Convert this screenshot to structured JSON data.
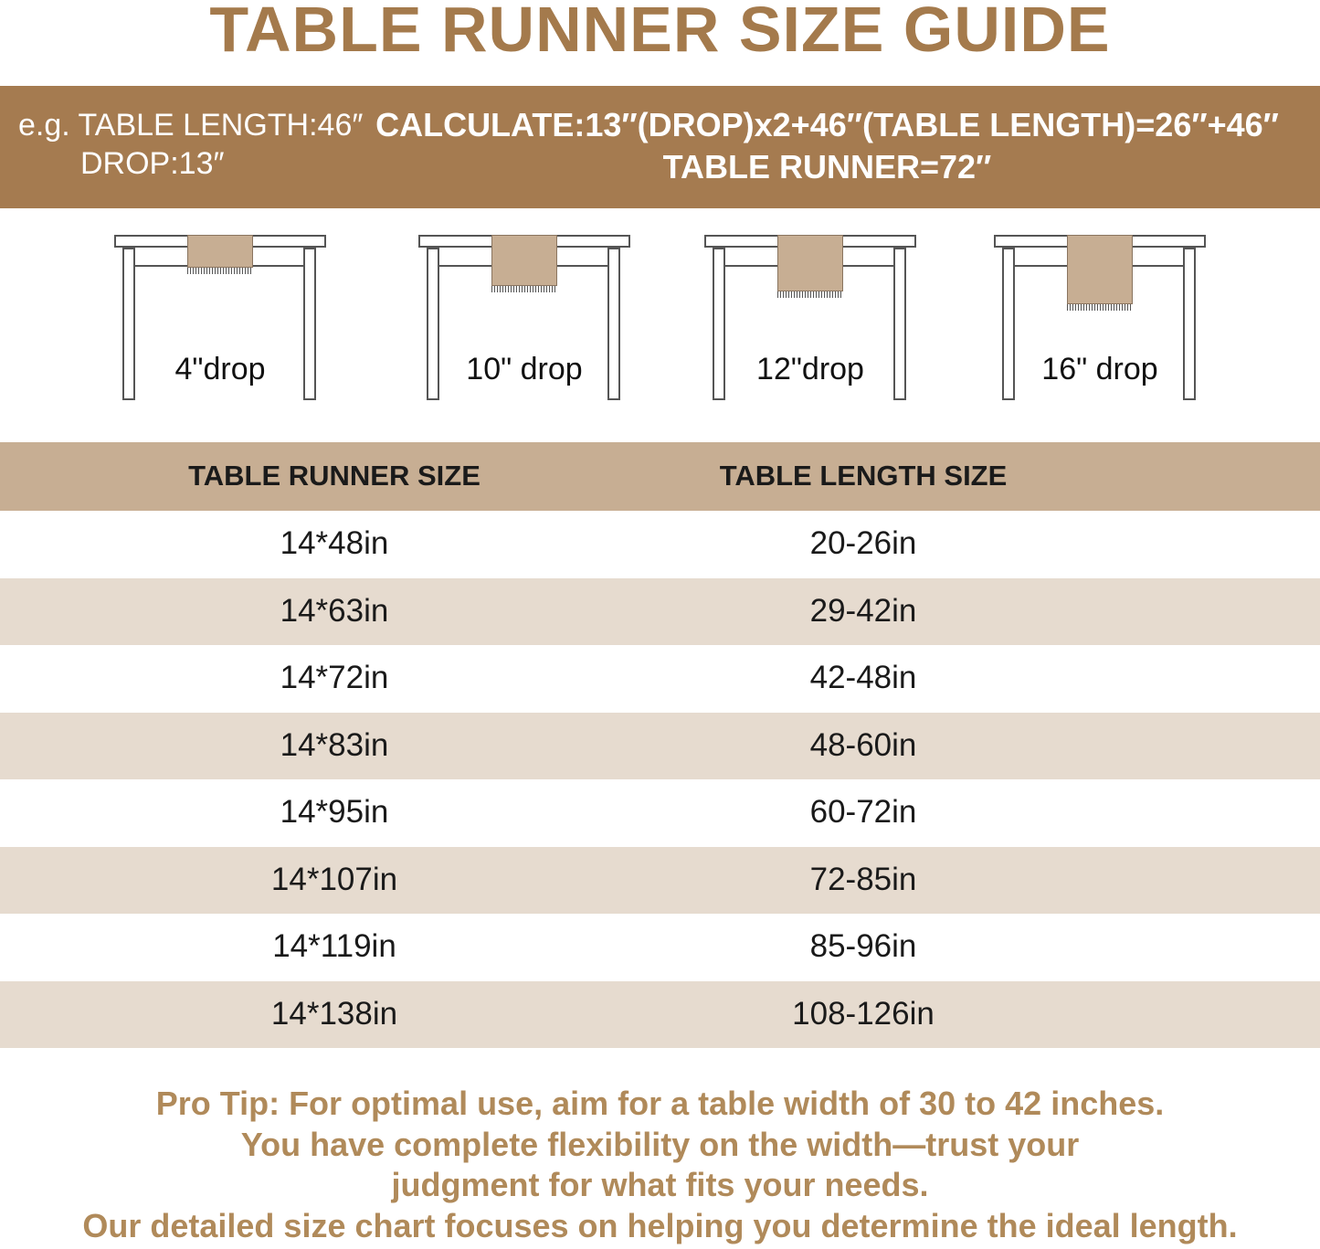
{
  "title": "TABLE RUNNER SIZE GUIDE",
  "example": {
    "table_length": "e.g. TABLE LENGTH:46″",
    "drop": "DROP:13″",
    "calculate": "CALCULATE:13″(DROP)x2+46″(TABLE LENGTH)=26″+46″",
    "result": "TABLE RUNNER=72″"
  },
  "diagrams": [
    {
      "label": "4\"drop",
      "drop_in": 4
    },
    {
      "label": "10\" drop",
      "drop_in": 10
    },
    {
      "label": "12\"drop",
      "drop_in": 12
    },
    {
      "label": "16\" drop",
      "drop_in": 16
    }
  ],
  "table": {
    "headers": [
      "TABLE RUNNER SIZE",
      "TABLE LENGTH SIZE"
    ],
    "rows": [
      [
        "14*48in",
        "20-26in"
      ],
      [
        "14*63in",
        "29-42in"
      ],
      [
        "14*72in",
        "42-48in"
      ],
      [
        "14*83in",
        "48-60in"
      ],
      [
        "14*95in",
        "60-72in"
      ],
      [
        "14*107in",
        "72-85in"
      ],
      [
        "14*119in",
        "85-96in"
      ],
      [
        "14*138in",
        "108-126in"
      ]
    ]
  },
  "tip": [
    "Pro Tip: For optimal use, aim for a table width of 30 to 42 inches.",
    "You have complete flexibility on the width—trust your",
    "judgment for what fits your needs.",
    "Our detailed size chart focuses on helping you determine the ideal length."
  ],
  "colors": {
    "brand": "#a57b50",
    "title": "#a47a4c",
    "header": "#c7ae93",
    "stripe": "#e6dbcf",
    "tip": "#b08a5a"
  }
}
